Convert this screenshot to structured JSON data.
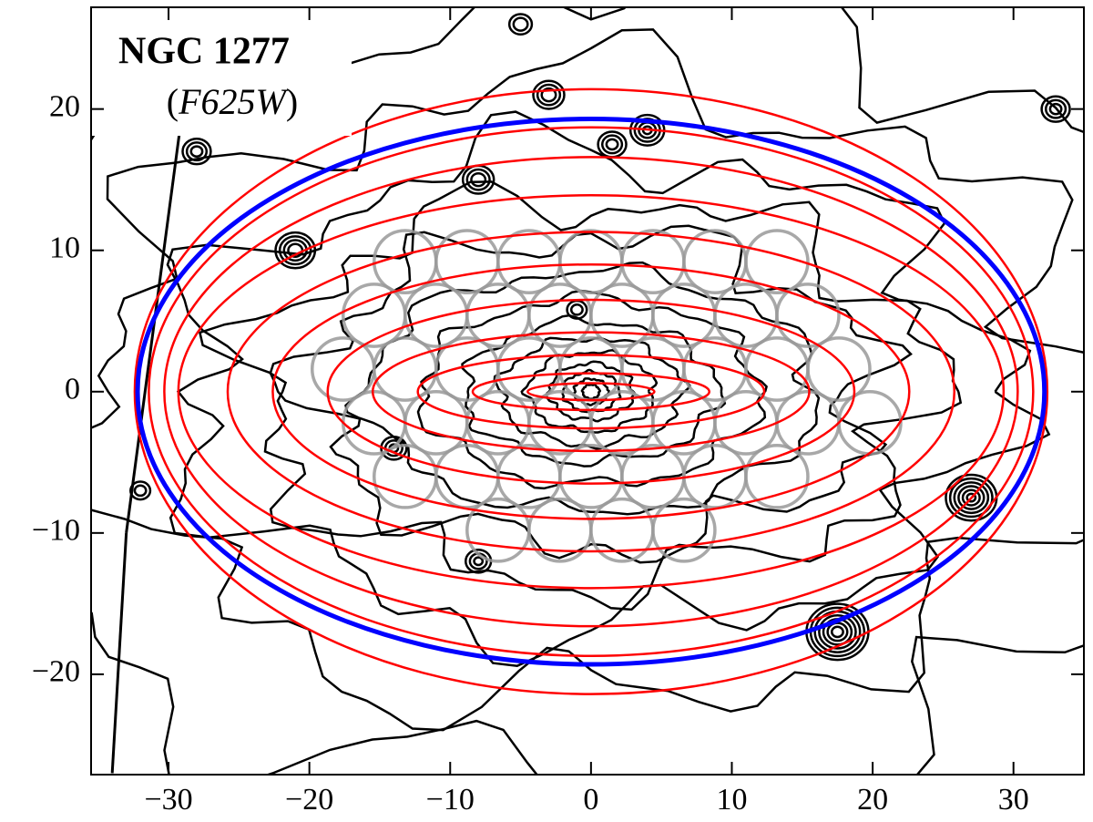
{
  "chart_data": {
    "type": "ellipse-fit",
    "title": "NGC 1277",
    "subtitle": [
      "(",
      "F625W",
      ")"
    ],
    "xlim": [
      -35.5,
      35
    ],
    "ylim": [
      -27.1,
      27.2
    ],
    "xticks": [
      {
        "value": -30,
        "label": "−30"
      },
      {
        "value": -20,
        "label": "−20"
      },
      {
        "value": -10,
        "label": "−10"
      },
      0,
      10,
      20,
      30
    ],
    "yticks": [
      {
        "value": -20,
        "label": "−20"
      },
      {
        "value": -10,
        "label": "−10"
      },
      0,
      10,
      20
    ],
    "isophotes": {
      "color": "#ff0000",
      "a": [
        32.4,
        31.4,
        30.3,
        29.3,
        25.8,
        22.6,
        18.7,
        15.5,
        12.3,
        8.4,
        4.5
      ],
      "b": [
        21.4,
        18.7,
        16.6,
        13.9,
        11.3,
        9.0,
        6.5,
        4.2,
        2.6,
        1.3,
        0.6
      ]
    },
    "boundary": {
      "color": "#0000ff",
      "a": 32.2,
      "b": 19.3
    },
    "fibers": {
      "color": "#999999",
      "radius": 2.2,
      "x": [
        -13.2,
        -8.8,
        -4.4,
        0,
        4.4,
        8.8,
        13.2,
        -15.4,
        -11,
        -6.6,
        -2.2,
        2.2,
        6.6,
        11,
        15.4,
        -17.6,
        -13.2,
        -8.8,
        -4.4,
        0,
        4.4,
        8.8,
        13.2,
        17.6,
        -15.4,
        -11,
        -6.6,
        -2.2,
        2.2,
        6.6,
        11,
        15.4,
        19.8,
        -13.2,
        -8.8,
        -4.4,
        0,
        4.4,
        8.8,
        13.2,
        -6.6,
        -2.2,
        2.2,
        6.6
      ],
      "y": [
        9.2,
        9.2,
        9.2,
        9.2,
        9.2,
        9.2,
        9.2,
        5.4,
        5.4,
        5.4,
        5.4,
        5.4,
        5.4,
        5.4,
        5.4,
        1.6,
        1.6,
        1.6,
        1.6,
        1.6,
        1.6,
        1.6,
        1.6,
        1.6,
        -2.2,
        -2.2,
        -2.2,
        -2.2,
        -2.2,
        -2.2,
        -2.2,
        -2.2,
        -2.2,
        -6.0,
        -6.0,
        -6.0,
        -6.0,
        -6.0,
        -6.0,
        -6.0,
        -9.8,
        -9.8,
        -9.8,
        -9.8
      ]
    }
  }
}
